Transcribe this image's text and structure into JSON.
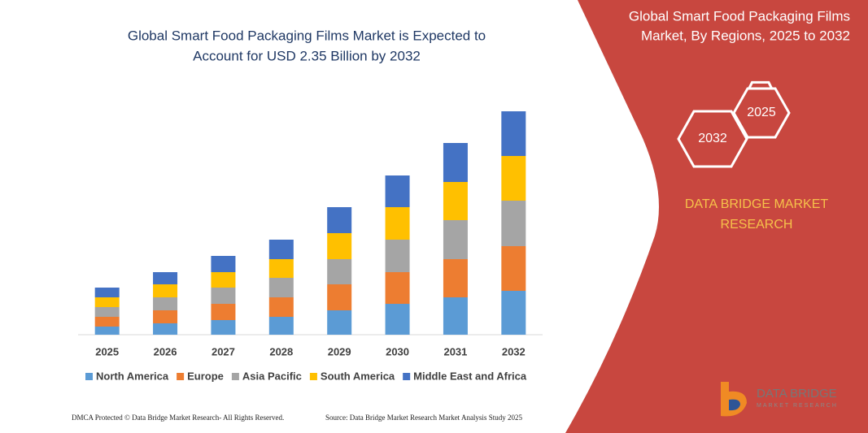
{
  "chart_data": {
    "type": "bar",
    "stacked": true,
    "title": [
      "Global Smart Food Packaging Films Market is Expected to",
      "Account for USD 2.35 Billion by 2032"
    ],
    "categories": [
      "2025",
      "2026",
      "2027",
      "2028",
      "2029",
      "2030",
      "2031",
      "2032"
    ],
    "series": [
      {
        "name": "North America",
        "color": "#5b9bd5",
        "values": [
          10,
          14,
          18,
          22,
          30,
          38,
          46,
          54
        ]
      },
      {
        "name": "Europe",
        "color": "#ed7d31",
        "values": [
          12,
          16,
          20,
          24,
          32,
          39,
          47,
          55
        ]
      },
      {
        "name": "Asia Pacific",
        "color": "#a5a5a5",
        "values": [
          12,
          16,
          20,
          24,
          31,
          40,
          48,
          56
        ]
      },
      {
        "name": "South America",
        "color": "#ffc000",
        "values": [
          12,
          16,
          19,
          23,
          32,
          40,
          47,
          55
        ]
      },
      {
        "name": "Middle East and Africa",
        "color": "#4472c4",
        "values": [
          12,
          15,
          20,
          24,
          32,
          39,
          48,
          55
        ]
      }
    ],
    "ylim": [
      0,
      275
    ],
    "grid": false,
    "legend": "bottom"
  },
  "panel": {
    "title": [
      "Global Smart Food Packaging Films",
      "Market, By Regions, 2025 to 2032"
    ],
    "hexagons": [
      "2025",
      "2032"
    ],
    "brand": [
      "DATA BRIDGE MARKET",
      "RESEARCH"
    ]
  },
  "logo": {
    "name": "DATA BRIDGE",
    "tagline": "MARKET RESEARCH"
  },
  "footer": {
    "left": "DMCA Protected © Data Bridge Market Research-  All Rights Reserved.",
    "right": "Source: Data Bridge Market Research  Market Analysis Study 2025"
  }
}
